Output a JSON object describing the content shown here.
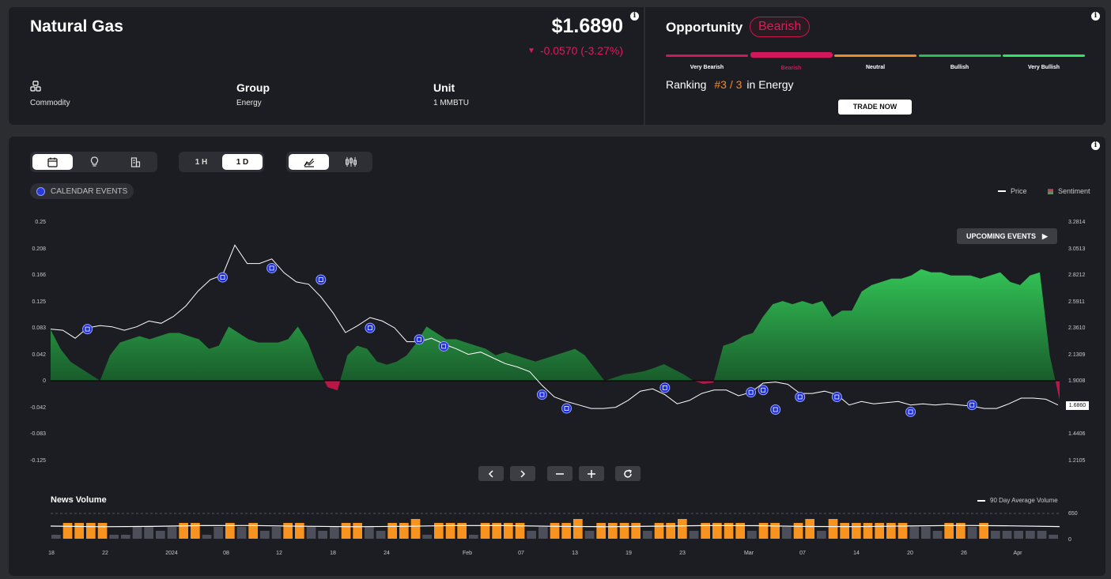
{
  "header": {
    "asset_name": "Natural Gas",
    "price": "$1.6890",
    "change": "-0.0570 (-3.27%)",
    "change_color": "#e0195a",
    "type_value": "Commodity",
    "group_label": "Group",
    "group_value": "Energy",
    "unit_label": "Unit",
    "unit_value": "1 MMBTU"
  },
  "opportunity": {
    "title": "Opportunity",
    "badge": "Bearish",
    "badge_color": "#c8174c",
    "ratings": [
      {
        "label": "Very Bearish",
        "color": "#d1185a"
      },
      {
        "label": "Bearish",
        "color": "#d1185a",
        "active": true
      },
      {
        "label": "Neutral",
        "color": "#f0882c"
      },
      {
        "label": "Bullish",
        "color": "#2bbd53"
      },
      {
        "label": "Very Bullish",
        "color": "#2ee65f"
      }
    ],
    "ranking_prefix": "Ranking",
    "ranking_value": "#3 / 3",
    "ranking_suffix": "in Energy",
    "trade_button": "TRADE NOW"
  },
  "toolbar": {
    "view_icons": [
      "calendar-icon",
      "lightbulb-icon",
      "building-icon"
    ],
    "intervals": [
      "1 H",
      "1 D"
    ],
    "active_interval": "1 D",
    "chart_types": [
      "area-chart-icon",
      "candlestick-icon"
    ],
    "calendar_events_chip": "CALENDAR EVENTS",
    "upcoming_events_button": "UPCOMING EVENTS"
  },
  "legend": {
    "price": "Price",
    "sentiment": "Sentiment"
  },
  "chart_data": {
    "type": "area",
    "left_axis_ticks": [
      "0.25",
      "0.208",
      "0.166",
      "0.125",
      "0.083",
      "0.042",
      "0",
      "-0.042",
      "-0.083",
      "-0.125"
    ],
    "right_axis_ticks": [
      "3.2814",
      "3.0513",
      "2.8212",
      "2.5911",
      "2.3610",
      "2.1309",
      "1.9008",
      "1.6860",
      "1.4406",
      "1.2105"
    ],
    "current_price_label": "1.6860",
    "x_ticks": [
      "18",
      "22",
      "2024",
      "08",
      "12",
      "18",
      "24",
      "Feb",
      "07",
      "13",
      "19",
      "23",
      "Mar",
      "07",
      "14",
      "20",
      "26",
      "Apr"
    ],
    "sentiment": [
      0.08,
      0.05,
      0.03,
      0.02,
      0.01,
      0.0,
      0.04,
      0.06,
      0.065,
      0.07,
      0.065,
      0.07,
      0.075,
      0.075,
      0.07,
      0.065,
      0.05,
      0.055,
      0.085,
      0.075,
      0.065,
      0.06,
      0.06,
      0.06,
      0.065,
      0.085,
      0.06,
      0.02,
      -0.01,
      -0.015,
      0.04,
      0.055,
      0.05,
      0.03,
      0.025,
      0.03,
      0.04,
      0.06,
      0.085,
      0.075,
      0.065,
      0.065,
      0.06,
      0.055,
      0.05,
      0.04,
      0.045,
      0.04,
      0.035,
      0.03,
      0.035,
      0.04,
      0.045,
      0.05,
      0.04,
      0.02,
      0.0,
      0.005,
      0.01,
      0.012,
      0.015,
      0.02,
      0.026,
      0.018,
      0.01,
      0.0,
      -0.005,
      -0.003,
      0.055,
      0.06,
      0.07,
      0.075,
      0.1,
      0.12,
      0.125,
      0.12,
      0.125,
      0.12,
      0.125,
      0.1,
      0.11,
      0.11,
      0.14,
      0.15,
      0.155,
      0.16,
      0.16,
      0.165,
      0.175,
      0.17,
      0.17,
      0.165,
      0.165,
      0.165,
      0.16,
      0.165,
      0.17,
      0.155,
      0.15,
      0.165,
      0.17,
      0.04,
      -0.03
    ],
    "price": [
      2.35,
      2.34,
      2.27,
      2.36,
      2.38,
      2.37,
      2.34,
      2.37,
      2.42,
      2.4,
      2.46,
      2.55,
      2.68,
      2.78,
      2.82,
      3.08,
      2.92,
      2.92,
      2.96,
      2.84,
      2.76,
      2.74,
      2.63,
      2.49,
      2.32,
      2.38,
      2.45,
      2.42,
      2.36,
      2.24,
      2.24,
      2.27,
      2.22,
      2.18,
      2.13,
      2.15,
      2.1,
      2.05,
      2.02,
      1.98,
      1.86,
      1.76,
      1.72,
      1.69,
      1.66,
      1.66,
      1.67,
      1.73,
      1.81,
      1.83,
      1.78,
      1.7,
      1.73,
      1.79,
      1.82,
      1.82,
      1.77,
      1.8,
      1.88,
      1.89,
      1.87,
      1.79,
      1.79,
      1.81,
      1.78,
      1.69,
      1.72,
      1.7,
      1.71,
      1.72,
      1.69,
      1.7,
      1.69,
      1.7,
      1.69,
      1.68,
      1.66,
      1.66,
      1.7,
      1.75,
      1.75,
      1.74,
      1.69
    ],
    "events": [
      [
        3,
        2.35
      ],
      [
        14,
        2.8
      ],
      [
        18,
        2.88
      ],
      [
        22,
        2.78
      ],
      [
        26,
        2.36
      ],
      [
        30,
        2.26
      ],
      [
        32,
        2.2
      ],
      [
        40,
        1.78
      ],
      [
        42,
        1.66
      ],
      [
        50,
        1.84
      ],
      [
        57,
        1.8
      ],
      [
        58,
        1.82
      ],
      [
        59,
        1.65
      ],
      [
        61,
        1.76
      ],
      [
        64,
        1.76
      ],
      [
        70,
        1.63
      ],
      [
        75,
        1.69
      ]
    ],
    "news_volume_axis": [
      "650",
      "0"
    ],
    "news_volume_title": "News Volume",
    "news_volume_legend": "90 Day Average Volume",
    "news_volume": [
      1,
      4,
      4,
      4,
      4,
      1,
      1,
      3,
      3,
      2,
      3,
      4,
      4,
      1,
      3,
      4,
      3,
      4,
      2,
      3,
      4,
      4,
      3,
      2,
      3,
      4,
      4,
      3,
      2,
      4,
      4,
      5,
      1,
      4,
      4,
      4,
      1,
      4,
      4,
      4,
      4,
      2,
      3,
      4,
      4,
      5,
      2,
      4,
      4,
      4,
      4,
      2,
      4,
      4,
      5,
      2,
      4,
      4,
      4,
      4,
      2,
      4,
      4,
      3,
      4,
      5,
      2,
      5,
      4,
      4,
      4,
      4,
      4,
      4,
      3,
      3,
      2,
      4,
      4,
      3,
      4,
      2,
      2,
      2,
      2,
      2,
      1
    ]
  }
}
